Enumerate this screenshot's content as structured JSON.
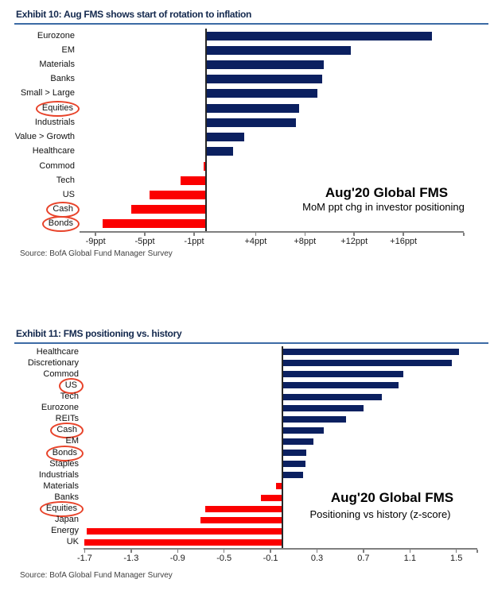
{
  "page": {
    "background": "#ffffff"
  },
  "chart_data": [
    {
      "type": "bar",
      "orientation": "horizontal",
      "exhibit_title": "Exhibit 10: Aug FMS shows start of rotation to inflation",
      "annotation_title": "Aug'20 Global FMS",
      "annotation_subtitle": "MoM ppt chg in investor positioning",
      "source": "Source: BofA Global Fund Manager Survey",
      "unit": "ppt",
      "categories": [
        "Eurozone",
        "EM",
        "Materials",
        "Banks",
        "Small > Large",
        "Equities",
        "Industrials",
        "Value > Growth",
        "Healthcare",
        "Commod",
        "Tech",
        "US",
        "Cash",
        "Bonds"
      ],
      "values": [
        18.3,
        11.7,
        9.5,
        9.4,
        9.0,
        7.5,
        7.3,
        3.1,
        2.2,
        -0.2,
        -2.1,
        -4.6,
        -6.1,
        -8.4
      ],
      "circled_categories": [
        "Equities",
        "Cash",
        "Bonds"
      ],
      "xticks": [
        {
          "value": -9,
          "label": "-9ppt"
        },
        {
          "value": -5,
          "label": "-5ppt"
        },
        {
          "value": -1,
          "label": "-1ppt"
        },
        {
          "value": 4,
          "label": "+4ppt"
        },
        {
          "value": 8,
          "label": "+8ppt"
        },
        {
          "value": 12,
          "label": "+12ppt"
        },
        {
          "value": 16,
          "label": "+16ppt"
        }
      ],
      "xlim": [
        -10.3,
        20.9
      ],
      "grid": false,
      "legend": "none",
      "bar_color_positive": "#0b2060",
      "bar_color_negative": "#fb0000",
      "highlight_circle_color": "#e8432a"
    },
    {
      "type": "bar",
      "orientation": "horizontal",
      "exhibit_title": "Exhibit 11: FMS positioning vs. history",
      "annotation_title": "Aug'20 Global FMS",
      "annotation_subtitle": "Positioning vs history (z-score)",
      "source": "Source: BofA Global Fund Manager Survey",
      "unit": "z-score",
      "categories": [
        "Healthcare",
        "Discretionary",
        "Commod",
        "US",
        "Tech",
        "Eurozone",
        "REITs",
        "Cash",
        "EM",
        "Bonds",
        "Staples",
        "Industrials",
        "Materials",
        "Banks",
        "Equities",
        "Japan",
        "Energy",
        "UK"
      ],
      "values": [
        1.52,
        1.46,
        1.04,
        1.0,
        0.86,
        0.7,
        0.55,
        0.36,
        0.27,
        0.21,
        0.2,
        0.18,
        -0.05,
        -0.18,
        -0.66,
        -0.7,
        -1.68,
        -1.7
      ],
      "circled_categories": [
        "US",
        "Cash",
        "Bonds",
        "Equities"
      ],
      "xticks": [
        {
          "value": -1.7,
          "label": "-1.7"
        },
        {
          "value": -1.3,
          "label": "-1.3"
        },
        {
          "value": -0.9,
          "label": "-0.9"
        },
        {
          "value": -0.5,
          "label": "-0.5"
        },
        {
          "value": -0.1,
          "label": "-0.1"
        },
        {
          "value": 0.3,
          "label": "0.3"
        },
        {
          "value": 0.7,
          "label": "0.7"
        },
        {
          "value": 1.1,
          "label": "1.1"
        },
        {
          "value": 1.5,
          "label": "1.5"
        }
      ],
      "xlim": [
        -1.71,
        1.68
      ],
      "grid": false,
      "legend": "none",
      "bar_color_positive": "#0b2060",
      "bar_color_negative": "#fb0000",
      "highlight_circle_color": "#e8432a"
    }
  ]
}
